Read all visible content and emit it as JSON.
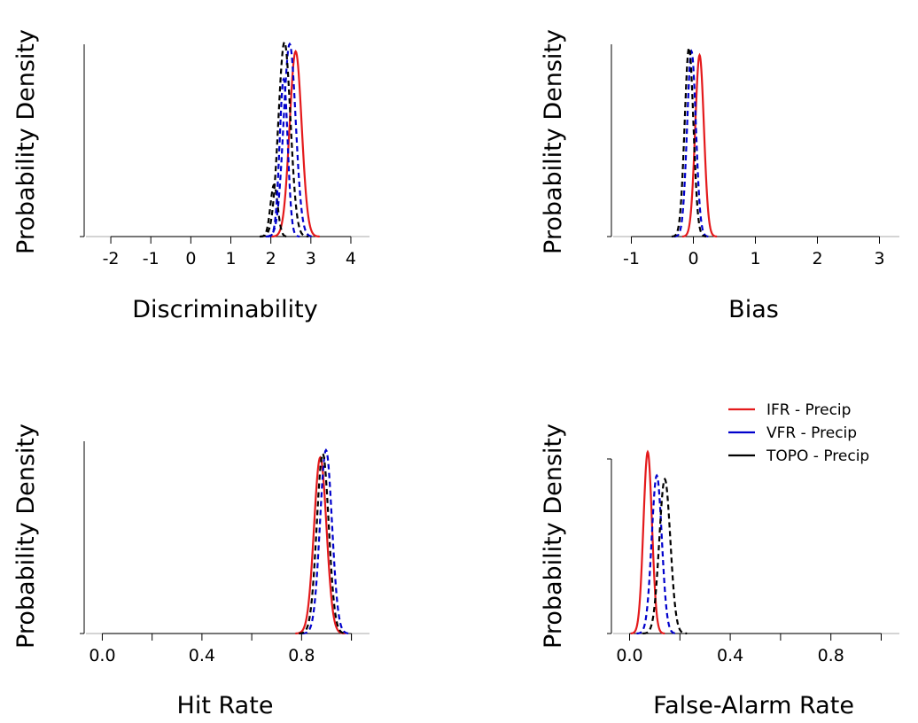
{
  "chart_data": [
    {
      "type": "line",
      "xlabel": "Discriminability",
      "ylabel": "Probability Density",
      "xlim": [
        -2.4,
        4.2
      ],
      "xticks": [
        "-2",
        "-1",
        "0",
        "1",
        "2",
        "3",
        "4"
      ],
      "series": [
        {
          "name": "IFR - Precip",
          "color": "#e41a1c",
          "style": "solid",
          "peak": 2.62,
          "sd": 0.15,
          "height": 1.0
        },
        {
          "name": "VFR - Precip",
          "color": "#0000cc",
          "style": "dashed",
          "peak": 2.47,
          "sd": 0.15,
          "height": 1.04
        },
        {
          "name": "TOPO - Precip",
          "color": "#000000",
          "style": "dashed",
          "peak": 2.34,
          "sd": 0.15,
          "height": 1.05
        },
        {
          "name": "IFR - Precip",
          "color": "#000000",
          "style": "dashed",
          "peak": 2.08,
          "sd": 0.09,
          "height": 0.28
        },
        {
          "name": "VFR - Precip",
          "color": "#0000cc",
          "style": "dashed",
          "peak": 2.32,
          "sd": 0.1,
          "height": 0.85
        }
      ]
    },
    {
      "type": "line",
      "xlabel": "Bias",
      "ylabel": "Probability Density",
      "xlim": [
        -1.15,
        3.15
      ],
      "xticks": [
        "-1",
        "0",
        "1",
        "2",
        "3"
      ],
      "series": [
        {
          "name": "IFR - Precip",
          "color": "#e41a1c",
          "style": "solid",
          "peak": 0.1,
          "sd": 0.07,
          "height": 0.98
        },
        {
          "name": "VFR - Precip",
          "color": "#0000cc",
          "style": "dashed",
          "peak": -0.03,
          "sd": 0.07,
          "height": 1.0
        },
        {
          "name": "TOPO - Precip",
          "color": "#000000",
          "style": "dashed",
          "peak": -0.07,
          "sd": 0.07,
          "height": 1.02
        }
      ]
    },
    {
      "type": "line",
      "xlabel": "Hit Rate",
      "ylabel": "Probability Density",
      "xlim": [
        -0.03,
        1.03
      ],
      "xticks": [
        "0.0",
        "",
        "0.4",
        "",
        "0.8",
        ""
      ],
      "series": [
        {
          "name": "IFR - Precip",
          "color": "#e41a1c",
          "style": "solid",
          "peak": 0.875,
          "sd": 0.025,
          "height": 0.96
        },
        {
          "name": "VFR - Precip",
          "color": "#0000cc",
          "style": "dashed",
          "peak": 0.898,
          "sd": 0.024,
          "height": 1.0
        },
        {
          "name": "TOPO - Precip",
          "color": "#000000",
          "style": "dashed",
          "peak": 0.885,
          "sd": 0.024,
          "height": 0.98
        }
      ]
    },
    {
      "type": "line",
      "xlabel": "False-Alarm Rate",
      "ylabel": "Probability Density",
      "xlim": [
        -0.03,
        1.03
      ],
      "xticks": [
        "0.0",
        "",
        "0.4",
        "",
        "0.8",
        ""
      ],
      "series": [
        {
          "name": "IFR - Precip",
          "color": "#e41a1c",
          "style": "solid",
          "peak": 0.072,
          "sd": 0.017,
          "height": 1.0
        },
        {
          "name": "VFR - Precip",
          "color": "#0000cc",
          "style": "dashed",
          "peak": 0.108,
          "sd": 0.02,
          "height": 0.87
        },
        {
          "name": "TOPO - Precip",
          "color": "#000000",
          "style": "dashed",
          "peak": 0.14,
          "sd": 0.022,
          "height": 0.85
        }
      ],
      "legend": {
        "position": "top-right",
        "entries": [
          {
            "label": "IFR - Precip",
            "color": "#e41a1c"
          },
          {
            "label": "VFR - Precip",
            "color": "#0000cc"
          },
          {
            "label": "TOPO - Precip",
            "color": "#000000"
          }
        ]
      }
    }
  ]
}
